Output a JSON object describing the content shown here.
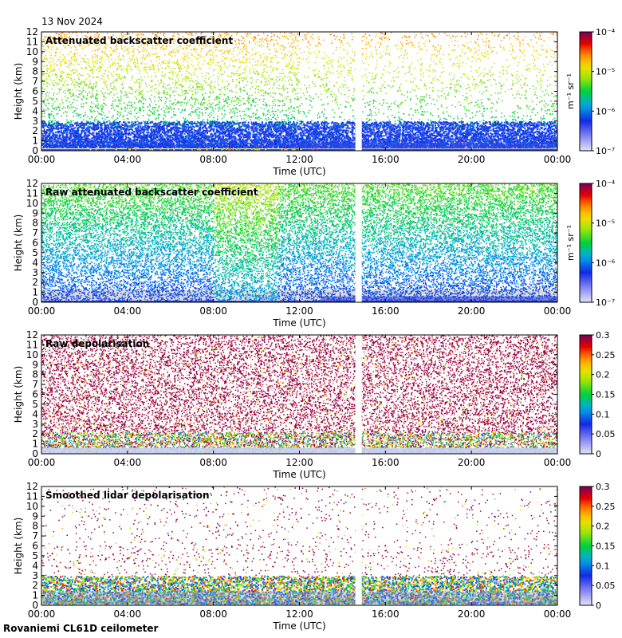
{
  "date": "13 Nov 2024",
  "footer": "Rovaniemi CL61D ceilometer",
  "colors": {
    "background": "#ffffff",
    "no_signal": "#dcdcdc",
    "data_gap": "#ffffff"
  },
  "chart_data": [
    {
      "type": "heatmap",
      "title": "Attenuated backscatter coefficient",
      "xlabel": "Time (UTC)",
      "ylabel": "Height (km)",
      "xticks": [
        "00:00",
        "04:00",
        "08:00",
        "12:00",
        "16:00",
        "20:00",
        "00:00"
      ],
      "xlim_hours": [
        0,
        24
      ],
      "yticks": [
        "0",
        "1",
        "2",
        "3",
        "4",
        "5",
        "6",
        "7",
        "8",
        "9",
        "10",
        "11",
        "12"
      ],
      "ylim_km": [
        0,
        12
      ],
      "data_gap_hours": [
        14.6,
        14.9
      ],
      "colorbar": {
        "scale": "log",
        "unit_label": "m⁻¹ sr⁻¹",
        "ticks": [
          "10⁻⁷",
          "10⁻⁶",
          "10⁻⁵",
          "10⁻⁴"
        ],
        "range": [
          1e-07,
          0.0001
        ]
      },
      "signal_top_km": 2.8
    },
    {
      "type": "heatmap",
      "title": "Raw attenuated backscatter coefficient",
      "xlabel": "Time (UTC)",
      "ylabel": "Height (km)",
      "xticks": [
        "00:00",
        "04:00",
        "08:00",
        "12:00",
        "16:00",
        "20:00",
        "00:00"
      ],
      "xlim_hours": [
        0,
        24
      ],
      "yticks": [
        "0",
        "1",
        "2",
        "3",
        "4",
        "5",
        "6",
        "7",
        "8",
        "9",
        "10",
        "11",
        "12"
      ],
      "ylim_km": [
        0,
        12
      ],
      "data_gap_hours": [
        14.6,
        14.9
      ],
      "colorbar": {
        "scale": "log",
        "unit_label": "m⁻¹ sr⁻¹",
        "ticks": [
          "10⁻⁷",
          "10⁻⁶",
          "10⁻⁵",
          "10⁻⁴"
        ],
        "range": [
          1e-07,
          0.0001
        ]
      }
    },
    {
      "type": "heatmap",
      "title": "Raw depolarisation",
      "xlabel": "Time (UTC)",
      "ylabel": "Height (km)",
      "xticks": [
        "00:00",
        "04:00",
        "08:00",
        "12:00",
        "16:00",
        "20:00",
        "00:00"
      ],
      "xlim_hours": [
        0,
        24
      ],
      "yticks": [
        "0",
        "1",
        "2",
        "3",
        "4",
        "5",
        "6",
        "7",
        "8",
        "9",
        "10",
        "11",
        "12"
      ],
      "ylim_km": [
        0,
        12
      ],
      "data_gap_hours": [
        14.6,
        14.9
      ],
      "colorbar": {
        "scale": "linear",
        "unit_label": "",
        "ticks": [
          "0",
          "0.05",
          "0.1",
          "0.15",
          "0.2",
          "0.25",
          "0.3"
        ],
        "range": [
          0,
          0.3
        ]
      }
    },
    {
      "type": "heatmap",
      "title": "Smoothed lidar depolarisation",
      "xlabel": "Time (UTC)",
      "ylabel": "Height (km)",
      "xticks": [
        "00:00",
        "04:00",
        "08:00",
        "12:00",
        "16:00",
        "20:00",
        "00:00"
      ],
      "xlim_hours": [
        0,
        24
      ],
      "yticks": [
        "0",
        "1",
        "2",
        "3",
        "4",
        "5",
        "6",
        "7",
        "8",
        "9",
        "10",
        "11",
        "12"
      ],
      "ylim_km": [
        0,
        12
      ],
      "data_gap_hours": [
        14.6,
        14.9
      ],
      "colorbar": {
        "scale": "linear",
        "unit_label": "",
        "ticks": [
          "0",
          "0.05",
          "0.1",
          "0.15",
          "0.2",
          "0.25",
          "0.3"
        ],
        "range": [
          0,
          0.3
        ]
      }
    }
  ]
}
